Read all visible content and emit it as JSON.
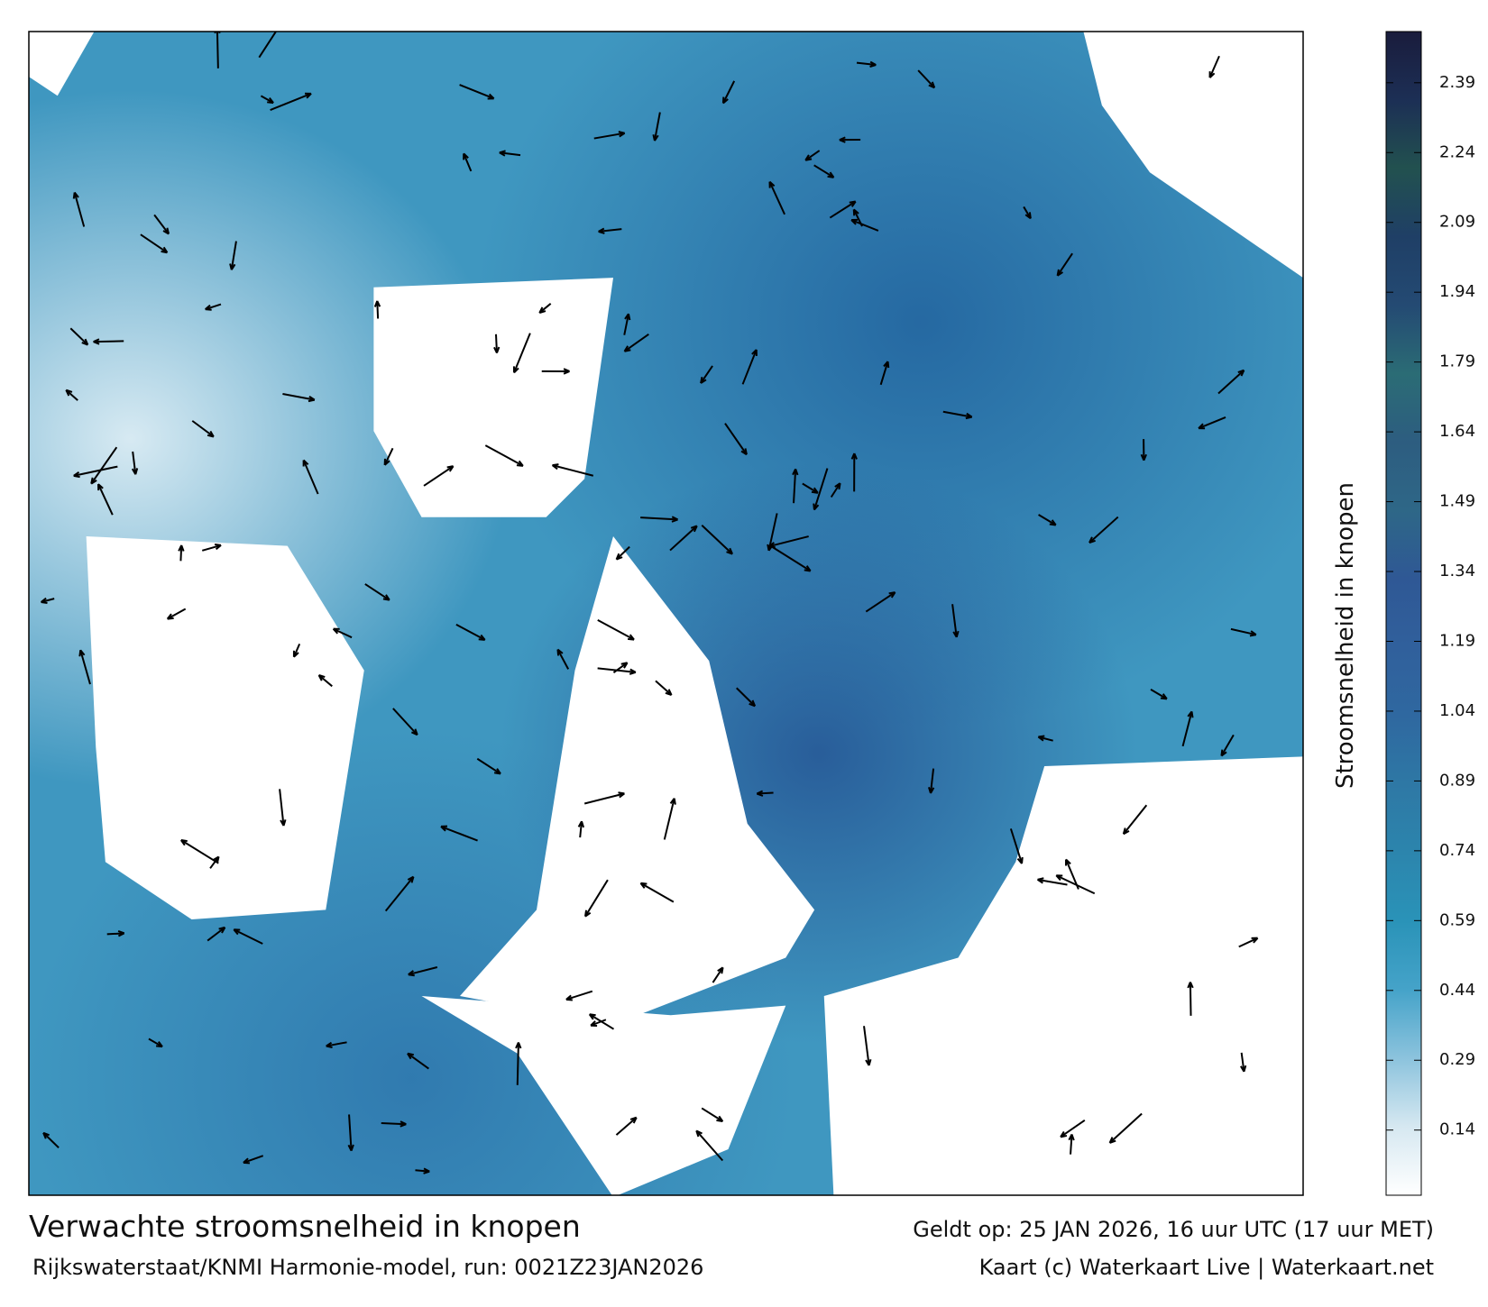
{
  "map": {
    "caption": {
      "title": "Verwachte stroomsnelheid in knopen",
      "source": "Rijkswaterstaat/KNMI Harmonie-model, run: 0021Z23JAN2026",
      "valid": "Geldt op: 25 JAN 2026, 16 uur UTC (17 uur MET)",
      "credit": "Kaart (c) Waterkaart Live | Waterkaart.net"
    },
    "colorbar": {
      "label": "Stroomsnelheid in knopen",
      "lim": [
        0,
        2.5
      ],
      "ticks": [
        0.14,
        0.29,
        0.44,
        0.59,
        0.74,
        0.89,
        1.04,
        1.19,
        1.34,
        1.49,
        1.64,
        1.79,
        1.94,
        2.09,
        2.24,
        2.39
      ],
      "colors": [
        "#ffffff",
        "#d6e8f1",
        "#8cc3dd",
        "#45a3c9",
        "#2a93b8",
        "#2c85ad",
        "#2e78a5",
        "#2f68a0",
        "#30609c",
        "#2f5895",
        "#2e6787",
        "#2d5d80",
        "#2b6c75",
        "#244a73",
        "#1f3f66",
        "#22514f",
        "#1c2f55",
        "#1a1c3c"
      ]
    }
  }
}
